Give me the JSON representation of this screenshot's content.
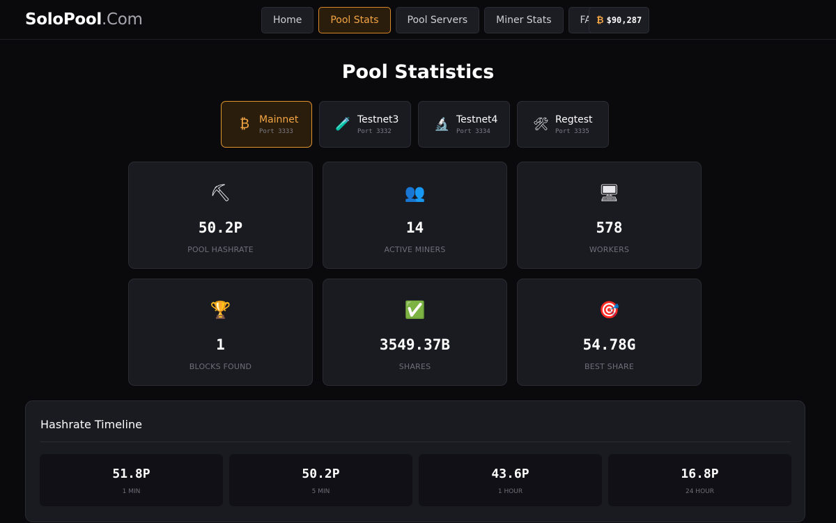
{
  "header": {
    "logo_brand": "SoloPool",
    "logo_tld": ".Com",
    "nav": [
      {
        "label": "Home"
      },
      {
        "label": "Pool Stats",
        "active": true
      },
      {
        "label": "Pool Servers"
      },
      {
        "label": "Miner Stats"
      },
      {
        "label": "FAQ"
      }
    ],
    "btc_symbol": "₿",
    "btc_price": "$90,287"
  },
  "page_title": "Pool Statistics",
  "networks": [
    {
      "name": "Mainnet",
      "port": "Port 3333",
      "icon": "bitcoin-icon",
      "glyph": "₿",
      "active": true
    },
    {
      "name": "Testnet3",
      "port": "Port 3332",
      "icon": "test-tube-icon",
      "glyph": "🧪"
    },
    {
      "name": "Testnet4",
      "port": "Port 3334",
      "icon": "microscope-icon",
      "glyph": "🔬"
    },
    {
      "name": "Regtest",
      "port": "Port 3335",
      "icon": "tools-icon",
      "glyph": "🛠"
    }
  ],
  "stats": [
    {
      "icon": "pickaxe-icon",
      "glyph": "⛏",
      "value": "50.2P",
      "label": "POOL HASHRATE"
    },
    {
      "icon": "users-icon",
      "glyph": "👥",
      "value": "14",
      "label": "ACTIVE MINERS"
    },
    {
      "icon": "computer-icon",
      "glyph": "🖥",
      "value": "578",
      "label": "WORKERS"
    },
    {
      "icon": "trophy-icon",
      "glyph": "🏆",
      "value": "1",
      "label": "BLOCKS FOUND"
    },
    {
      "icon": "check-icon",
      "glyph": "✅",
      "value": "3549.37B",
      "label": "SHARES"
    },
    {
      "icon": "target-icon",
      "glyph": "🎯",
      "value": "54.78G",
      "label": "BEST SHARE"
    }
  ],
  "timeline": {
    "title": "Hashrate Timeline",
    "items": [
      {
        "value": "51.8P",
        "label": "1 MIN"
      },
      {
        "value": "50.2P",
        "label": "5 MIN"
      },
      {
        "value": "43.6P",
        "label": "1 HOUR"
      },
      {
        "value": "16.8P",
        "label": "24 HOUR"
      }
    ]
  }
}
